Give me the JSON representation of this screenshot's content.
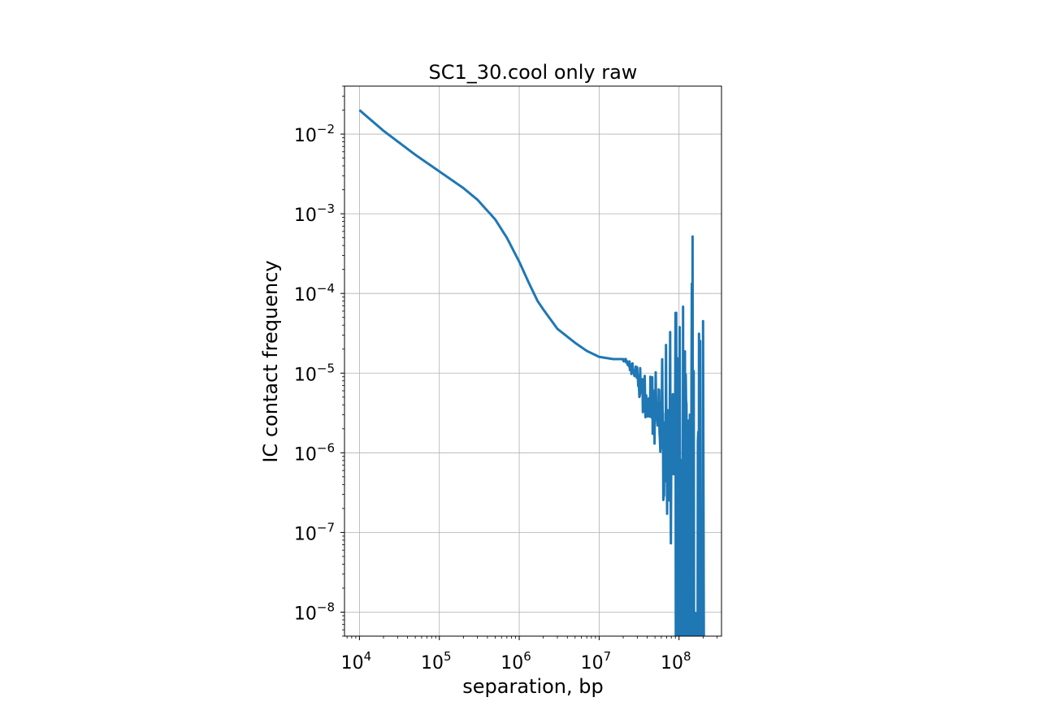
{
  "chart_data": {
    "type": "line",
    "title": "SC1_30.cool only raw",
    "xlabel": "separation, bp",
    "ylabel": "IC contact frequency",
    "xscale": "log",
    "yscale": "log",
    "xlim": [
      6500,
      340000000
    ],
    "ylim": [
      5e-09,
      0.04
    ],
    "grid": true,
    "line_color": "#1f77b4",
    "xticks": [
      {
        "value": 10000,
        "base": "10",
        "exp": "4"
      },
      {
        "value": 100000,
        "base": "10",
        "exp": "5"
      },
      {
        "value": 1000000,
        "base": "10",
        "exp": "6"
      },
      {
        "value": 10000000,
        "base": "10",
        "exp": "7"
      },
      {
        "value": 100000000,
        "base": "10",
        "exp": "8"
      }
    ],
    "yticks": [
      {
        "value": 0.01,
        "base": "10",
        "exp": "−2"
      },
      {
        "value": 0.001,
        "base": "10",
        "exp": "−3"
      },
      {
        "value": 0.0001,
        "base": "10",
        "exp": "−4"
      },
      {
        "value": 1e-05,
        "base": "10",
        "exp": "−5"
      },
      {
        "value": 1e-06,
        "base": "10",
        "exp": "−6"
      },
      {
        "value": 1e-07,
        "base": "10",
        "exp": "−7"
      },
      {
        "value": 1e-08,
        "base": "10",
        "exp": "−8"
      }
    ],
    "series": [
      {
        "x": [
          10000,
          20000,
          50000,
          100000,
          200000,
          300000,
          500000,
          700000,
          1000000,
          1300000,
          1700000,
          2000000,
          3000000,
          5000000,
          7000000,
          10000000,
          15000000,
          20000000,
          25000000,
          30000000,
          40000000,
          50000000,
          60000000,
          70000000,
          80000000,
          90000000,
          100000000,
          120000000,
          140000000,
          160000000,
          180000000,
          190000000,
          195000000
        ],
        "y": [
          0.02,
          0.011,
          0.0055,
          0.0034,
          0.0021,
          0.0015,
          0.00085,
          0.0005,
          0.00025,
          0.00014,
          8e-05,
          6.3e-05,
          3.6e-05,
          2.4e-05,
          1.9e-05,
          1.6e-05,
          1.5e-05,
          1.5e-05,
          1.2e-05,
          8.5e-06,
          4.5e-06,
          3e-06,
          2.2e-06,
          1.8e-06,
          1.6e-06,
          1.5e-06,
          1.5e-06,
          1.4e-06,
          1.4e-06,
          1.5e-06,
          1.8e-06,
          4e-06,
          4.5e-05
        ],
        "noise_from": 20000000,
        "floor": 5e-09,
        "peaks": [
          {
            "x": 200000000,
            "y": 4.5e-05
          }
        ]
      }
    ]
  }
}
